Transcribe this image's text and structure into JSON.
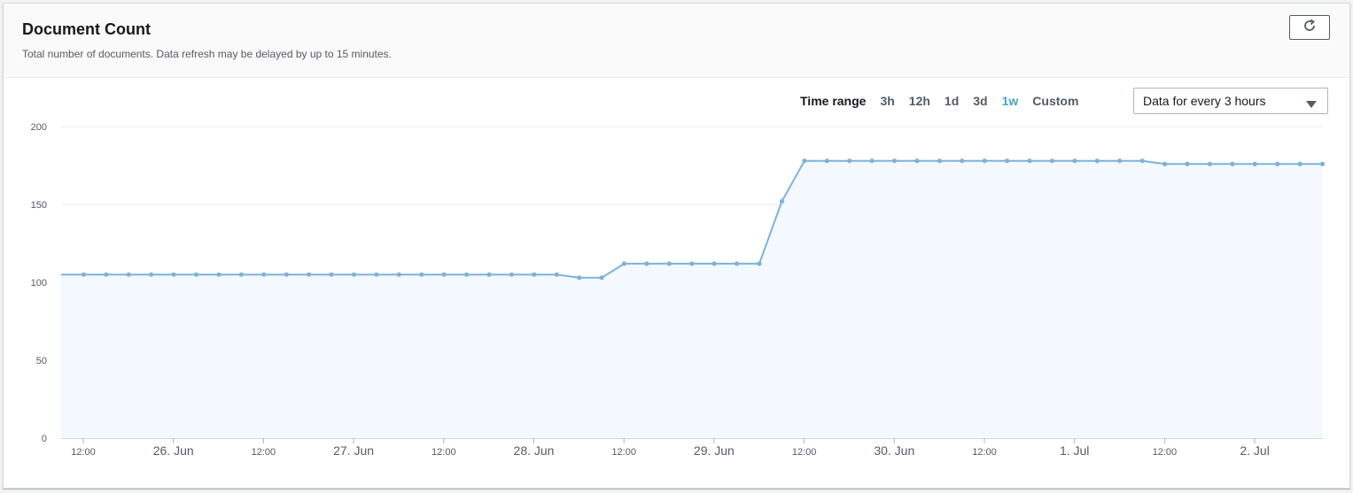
{
  "panel": {
    "title": "Document Count",
    "subtitle": "Total number of documents. Data refresh may be delayed by up to 15 minutes.",
    "refresh_icon": "refresh-icon"
  },
  "time_range": {
    "label": "Time range",
    "options": [
      "3h",
      "12h",
      "1d",
      "3d",
      "1w",
      "Custom"
    ],
    "selected": "1w"
  },
  "period_select": {
    "value": "Data for every 3 hours",
    "icon": "caret-down-icon"
  },
  "colors": {
    "line": "#7eb2dc",
    "area": "#f3f9fe",
    "active": "#44a5c8"
  },
  "chart_data": {
    "type": "area",
    "title": "",
    "xlabel": "",
    "ylabel": "",
    "ylim": [
      0,
      200
    ],
    "y_ticks": [
      0,
      50,
      100,
      150,
      200
    ],
    "x_ticks": [
      {
        "label": "12:00",
        "major": false
      },
      {
        "label": "26. Jun",
        "major": true
      },
      {
        "label": "12:00",
        "major": false
      },
      {
        "label": "27. Jun",
        "major": true
      },
      {
        "label": "12:00",
        "major": false
      },
      {
        "label": "28. Jun",
        "major": true
      },
      {
        "label": "12:00",
        "major": false
      },
      {
        "label": "29. Jun",
        "major": true
      },
      {
        "label": "12:00",
        "major": false
      },
      {
        "label": "30. Jun",
        "major": true
      },
      {
        "label": "12:00",
        "major": false
      },
      {
        "label": "1. Jul",
        "major": true
      },
      {
        "label": "12:00",
        "major": false
      },
      {
        "label": "2. Jul",
        "major": true
      }
    ],
    "grid": true,
    "legend": "none",
    "interval_hours": 3,
    "series": [
      {
        "values": [
          105,
          105,
          105,
          105,
          105,
          105,
          105,
          105,
          105,
          105,
          105,
          105,
          105,
          105,
          105,
          105,
          105,
          105,
          105,
          105,
          105,
          105,
          105,
          103,
          103,
          112,
          112,
          112,
          112,
          112,
          112,
          112,
          152,
          178,
          178,
          178,
          178,
          178,
          178,
          178,
          178,
          178,
          178,
          178,
          178,
          178,
          178,
          178,
          178,
          176,
          176,
          176,
          176,
          176,
          176,
          176,
          176
        ]
      }
    ]
  }
}
